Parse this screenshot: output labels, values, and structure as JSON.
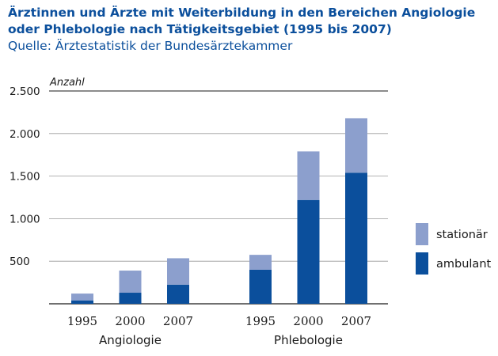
{
  "header": {
    "title": "Ärztinnen und Ärzte mit Weiterbildung in den Bereichen Angiologie oder Phlebologie nach Tätigkeitsgebiet (1995 bis 2007)",
    "subtitle": "Quelle: Ärztestatistik der Bundesärztekammer"
  },
  "chart_data": {
    "type": "bar",
    "stacked": true,
    "ylabel": "Anzahl",
    "ylim": [
      0,
      2500
    ],
    "yticks": [
      500,
      1000,
      1500,
      2000,
      2500
    ],
    "ytick_labels": [
      "500",
      "1.000",
      "1.500",
      "2.000",
      "2.500"
    ],
    "grid": true,
    "legend_position": "right",
    "groups": [
      {
        "label": "Angiologie",
        "categories": [
          "1995",
          "2000",
          "2007"
        ],
        "series": [
          {
            "name": "ambulant",
            "values": [
              40,
              130,
              225
            ]
          },
          {
            "name": "stationär",
            "values": [
              80,
              260,
              310
            ]
          }
        ]
      },
      {
        "label": "Phlebologie",
        "categories": [
          "1995",
          "2000",
          "2007"
        ],
        "series": [
          {
            "name": "ambulant",
            "values": [
              400,
              1220,
              1540
            ]
          },
          {
            "name": "stationär",
            "values": [
              175,
              570,
              640
            ]
          }
        ]
      }
    ],
    "colors": {
      "ambulant": "#0b4f9c",
      "stationär": "#8c9fcd",
      "grid": "#9a9a9a",
      "axis": "#1a1a1a"
    }
  }
}
